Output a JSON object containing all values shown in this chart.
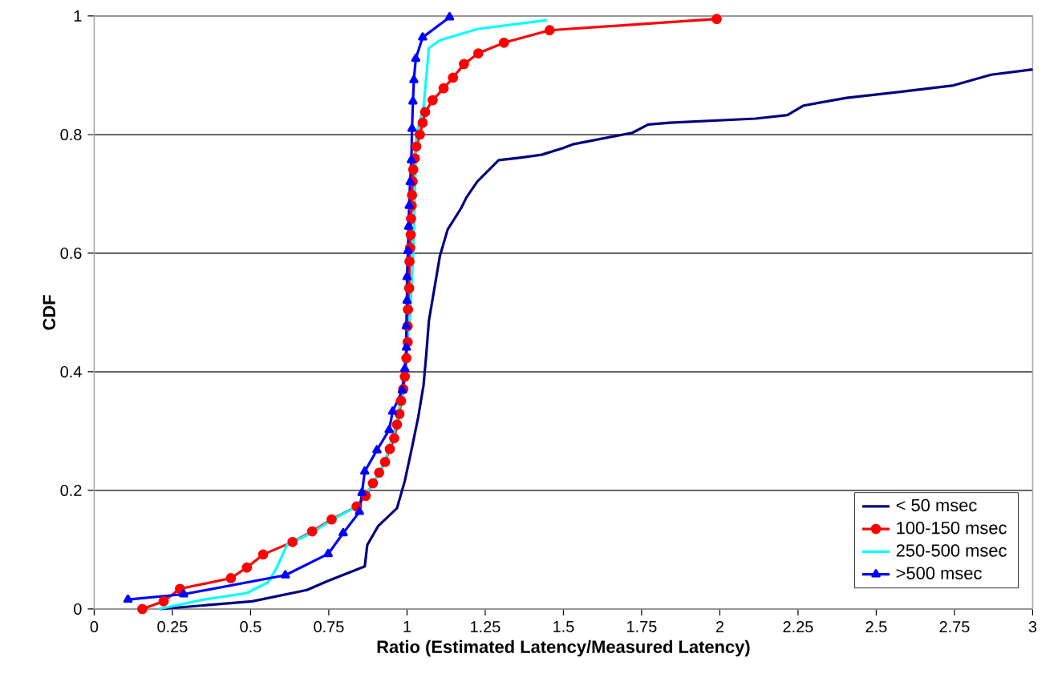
{
  "chart_data": {
    "type": "line",
    "xlabel": "Ratio (Estimated Latency/Measured Latency)",
    "ylabel": "CDF",
    "xlim": [
      0,
      3
    ],
    "ylim": [
      0,
      1
    ],
    "xticks": [
      0,
      0.25,
      0.5,
      0.75,
      1,
      1.25,
      1.5,
      1.75,
      2,
      2.25,
      2.5,
      2.75,
      3
    ],
    "yticks": [
      0,
      0.2,
      0.4,
      0.6,
      0.8,
      1
    ],
    "grid": "y",
    "legend": "bottom right",
    "series": [
      {
        "name": "< 50 msec",
        "color": "#000080",
        "marker": "none",
        "x": [
          0.21,
          0.505,
          0.68,
          0.745,
          0.865,
          0.873,
          0.908,
          0.968,
          0.993,
          1.015,
          1.036,
          1.053,
          1.062,
          1.07,
          1.105,
          1.13,
          1.173,
          1.19,
          1.225,
          1.293,
          1.36,
          1.43,
          1.497,
          1.533,
          1.72,
          1.771,
          1.84,
          2.114,
          2.216,
          2.268,
          2.405,
          2.576,
          2.747,
          2.867,
          3
        ],
        "values": [
          0,
          0.013,
          0.032,
          0.047,
          0.072,
          0.108,
          0.14,
          0.17,
          0.216,
          0.27,
          0.324,
          0.378,
          0.432,
          0.486,
          0.595,
          0.64,
          0.676,
          0.694,
          0.721,
          0.757,
          0.761,
          0.766,
          0.777,
          0.784,
          0.803,
          0.817,
          0.82,
          0.827,
          0.833,
          0.849,
          0.862,
          0.872,
          0.883,
          0.901,
          0.91
        ]
      },
      {
        "name": "100-150 msec",
        "color": "#ff0000",
        "marker": "circle",
        "x": [
          0.154,
          0.222,
          0.274,
          0.437,
          0.488,
          0.54,
          0.634,
          0.697,
          0.759,
          0.839,
          0.868,
          0.891,
          0.911,
          0.93,
          0.945,
          0.959,
          0.968,
          0.976,
          0.981,
          0.988,
          0.993,
          0.998,
          1.002,
          1.002,
          1.003,
          1.007,
          1.008,
          1.01,
          1.012,
          1.013,
          1.015,
          1.016,
          1.018,
          1.02,
          1.025,
          1.03,
          1.041,
          1.05,
          1.058,
          1.082,
          1.117,
          1.147,
          1.182,
          1.228,
          1.31,
          1.456,
          1.99
        ],
        "values": [
          0,
          0.013,
          0.034,
          0.052,
          0.07,
          0.092,
          0.113,
          0.131,
          0.151,
          0.173,
          0.191,
          0.212,
          0.23,
          0.248,
          0.27,
          0.288,
          0.311,
          0.329,
          0.351,
          0.371,
          0.392,
          0.423,
          0.45,
          0.477,
          0.505,
          0.541,
          0.586,
          0.609,
          0.631,
          0.658,
          0.68,
          0.698,
          0.721,
          0.741,
          0.76,
          0.78,
          0.8,
          0.82,
          0.838,
          0.858,
          0.878,
          0.896,
          0.919,
          0.937,
          0.955,
          0.976,
          0.995
        ]
      },
      {
        "name": "250-500 msec",
        "color": "#00ffff",
        "marker": "none",
        "x": [
          0.206,
          0.351,
          0.488,
          0.556,
          0.582,
          0.616,
          0.694,
          0.76,
          0.839,
          0.89,
          0.93,
          0.96,
          0.98,
          0.995,
          1.01,
          1.02,
          1.025,
          1.03,
          1.053,
          1.07,
          1.105,
          1.225,
          1.447
        ],
        "values": [
          0,
          0.016,
          0.027,
          0.045,
          0.068,
          0.108,
          0.128,
          0.15,
          0.173,
          0.21,
          0.25,
          0.3,
          0.35,
          0.42,
          0.5,
          0.6,
          0.7,
          0.8,
          0.847,
          0.946,
          0.959,
          0.978,
          0.993
        ]
      },
      {
        "name": ">500 msec",
        "color": "#0000ff",
        "marker": "triangle",
        "x": [
          0.108,
          0.286,
          0.611,
          0.748,
          0.796,
          0.848,
          0.856,
          0.865,
          0.904,
          0.943,
          0.954,
          0.985,
          0.993,
          0.998,
          0.998,
          1.0,
          1.0,
          1.003,
          1.005,
          1.007,
          1.01,
          1.014,
          1.016,
          1.019,
          1.022,
          1.028,
          1.05,
          1.136
        ],
        "values": [
          0.016,
          0.025,
          0.057,
          0.093,
          0.128,
          0.164,
          0.196,
          0.232,
          0.268,
          0.302,
          0.333,
          0.369,
          0.405,
          0.441,
          0.477,
          0.52,
          0.56,
          0.604,
          0.645,
          0.68,
          0.72,
          0.757,
          0.81,
          0.856,
          0.892,
          0.928,
          0.964,
          0.998
        ]
      }
    ]
  }
}
